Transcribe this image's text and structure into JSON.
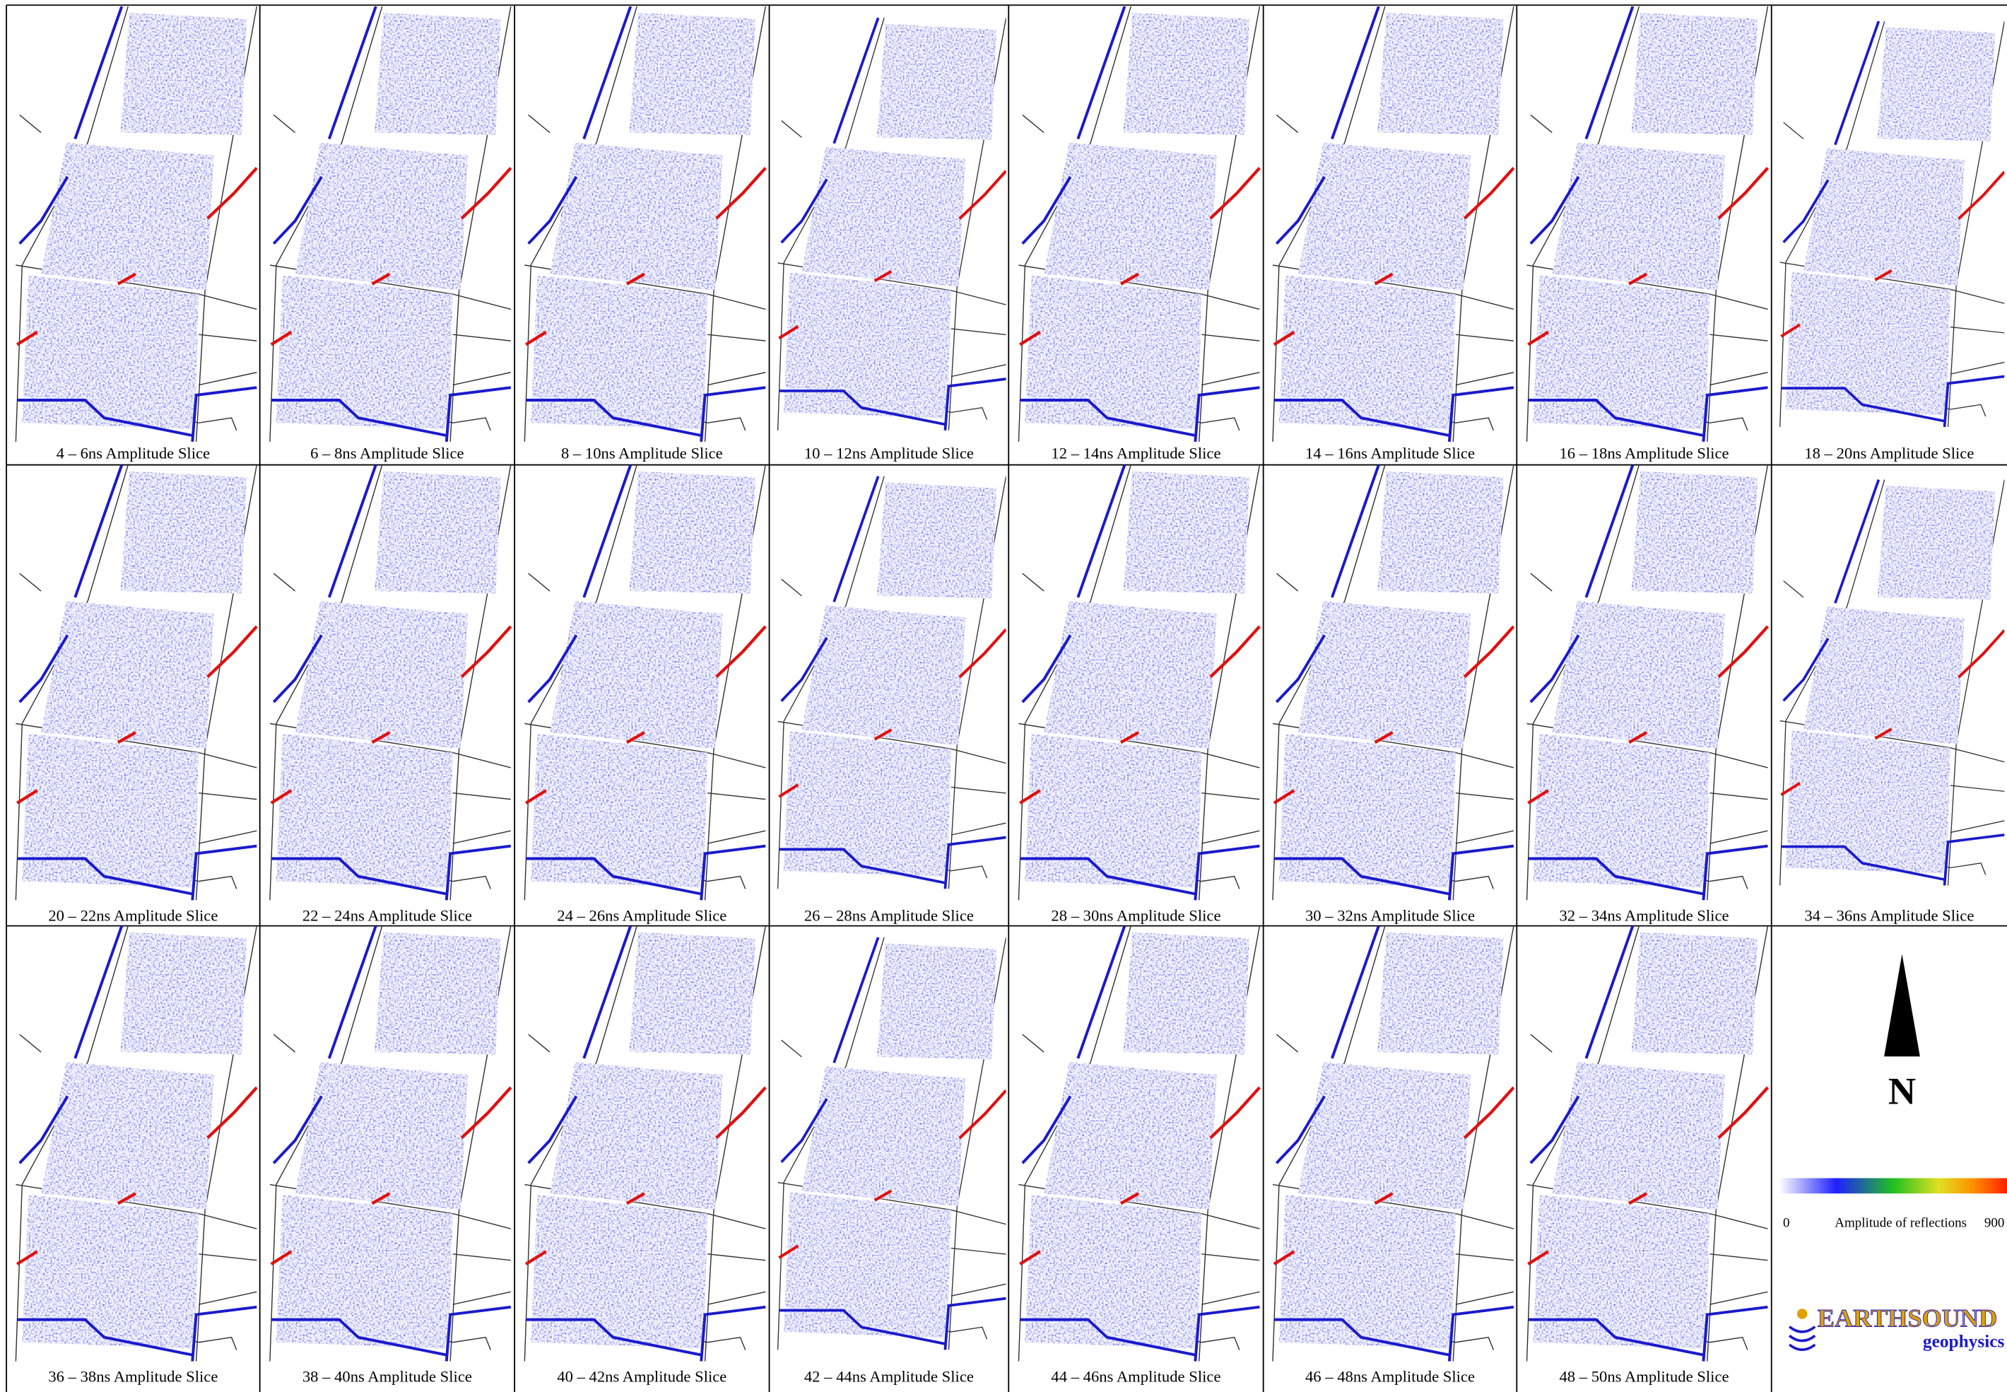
{
  "slices": [
    "4 – 6ns Amplitude Slice",
    "6 – 8ns Amplitude Slice",
    "8 – 10ns Amplitude Slice",
    "10 – 12ns Amplitude Slice",
    "12 – 14ns Amplitude Slice",
    "14 – 16ns Amplitude Slice",
    "16 – 18ns Amplitude Slice",
    "18 – 20ns Amplitude Slice",
    "20 – 22ns Amplitude Slice",
    "22 – 24ns Amplitude Slice",
    "24 – 26ns Amplitude Slice",
    "26 – 28ns Amplitude Slice",
    "28 – 30ns Amplitude Slice",
    "30 – 32ns Amplitude Slice",
    "32 – 34ns Amplitude Slice",
    "34 – 36ns Amplitude Slice",
    "36 – 38ns Amplitude Slice",
    "38 – 40ns Amplitude Slice",
    "40 – 42ns Amplitude Slice",
    "42 – 44ns Amplitude Slice",
    "44 – 46ns Amplitude Slice",
    "46 – 48ns Amplitude Slice",
    "48 – 50ns Amplitude Slice"
  ],
  "north": "N",
  "legend": {
    "min": 0,
    "title": "Amplitude of reflections",
    "max": 900
  },
  "logo": {
    "name": "EARTHSOUND",
    "tagline": "geophysics"
  }
}
